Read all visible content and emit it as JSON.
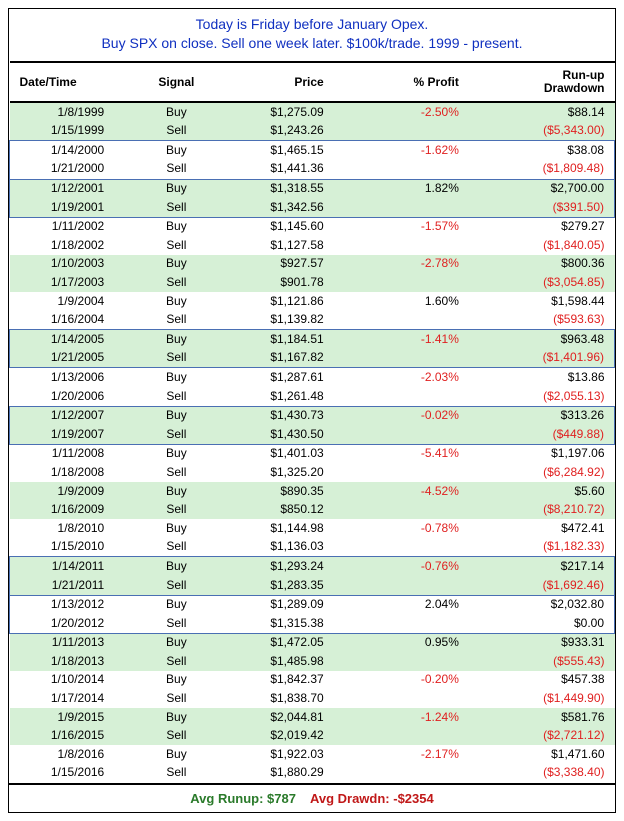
{
  "colors": {
    "title": "#1030c0",
    "row_shade": "#d6f0d6",
    "box_border": "#4a6fb3",
    "neg": "#e02020",
    "runup_label": "#2a7a2a",
    "drawdn_label": "#c01818"
  },
  "title": {
    "line1": "Today is Friday before January Opex.",
    "line2": "Buy SPX on close. Sell one week later. $100k/trade. 1999 - present."
  },
  "headers": {
    "date": "Date/Time",
    "signal": "Signal",
    "price": "Price",
    "profit": "% Profit",
    "run": "Run-up\nDrawdown"
  },
  "rows": [
    {
      "date": "1/8/1999",
      "signal": "Buy",
      "price": "$1,275.09",
      "profit": "-2.50%",
      "profit_neg": true,
      "run": "$88.14",
      "run_neg": false,
      "shade": true,
      "box": false
    },
    {
      "date": "1/15/1999",
      "signal": "Sell",
      "price": "$1,243.26",
      "profit": "",
      "profit_neg": false,
      "run": "($5,343.00)",
      "run_neg": true,
      "shade": true,
      "box": false
    },
    {
      "date": "1/14/2000",
      "signal": "Buy",
      "price": "$1,465.15",
      "profit": "-1.62%",
      "profit_neg": true,
      "run": "$38.08",
      "run_neg": false,
      "shade": false,
      "box": "top"
    },
    {
      "date": "1/21/2000",
      "signal": "Sell",
      "price": "$1,441.36",
      "profit": "",
      "profit_neg": false,
      "run": "($1,809.48)",
      "run_neg": true,
      "shade": false,
      "box": "bot"
    },
    {
      "date": "1/12/2001",
      "signal": "Buy",
      "price": "$1,318.55",
      "profit": "1.82%",
      "profit_neg": false,
      "run": "$2,700.00",
      "run_neg": false,
      "shade": true,
      "box": "top"
    },
    {
      "date": "1/19/2001",
      "signal": "Sell",
      "price": "$1,342.56",
      "profit": "",
      "profit_neg": false,
      "run": "($391.50)",
      "run_neg": true,
      "shade": true,
      "box": "bot"
    },
    {
      "date": "1/11/2002",
      "signal": "Buy",
      "price": "$1,145.60",
      "profit": "-1.57%",
      "profit_neg": true,
      "run": "$279.27",
      "run_neg": false,
      "shade": false,
      "box": false
    },
    {
      "date": "1/18/2002",
      "signal": "Sell",
      "price": "$1,127.58",
      "profit": "",
      "profit_neg": false,
      "run": "($1,840.05)",
      "run_neg": true,
      "shade": false,
      "box": false
    },
    {
      "date": "1/10/2003",
      "signal": "Buy",
      "price": "$927.57",
      "profit": "-2.78%",
      "profit_neg": true,
      "run": "$800.36",
      "run_neg": false,
      "shade": true,
      "box": false
    },
    {
      "date": "1/17/2003",
      "signal": "Sell",
      "price": "$901.78",
      "profit": "",
      "profit_neg": false,
      "run": "($3,054.85)",
      "run_neg": true,
      "shade": true,
      "box": false
    },
    {
      "date": "1/9/2004",
      "signal": "Buy",
      "price": "$1,121.86",
      "profit": "1.60%",
      "profit_neg": false,
      "run": "$1,598.44",
      "run_neg": false,
      "shade": false,
      "box": false
    },
    {
      "date": "1/16/2004",
      "signal": "Sell",
      "price": "$1,139.82",
      "profit": "",
      "profit_neg": false,
      "run": "($593.63)",
      "run_neg": true,
      "shade": false,
      "box": false
    },
    {
      "date": "1/14/2005",
      "signal": "Buy",
      "price": "$1,184.51",
      "profit": "-1.41%",
      "profit_neg": true,
      "run": "$963.48",
      "run_neg": false,
      "shade": true,
      "box": "top"
    },
    {
      "date": "1/21/2005",
      "signal": "Sell",
      "price": "$1,167.82",
      "profit": "",
      "profit_neg": false,
      "run": "($1,401.96)",
      "run_neg": true,
      "shade": true,
      "box": "bot"
    },
    {
      "date": "1/13/2006",
      "signal": "Buy",
      "price": "$1,287.61",
      "profit": "-2.03%",
      "profit_neg": true,
      "run": "$13.86",
      "run_neg": false,
      "shade": false,
      "box": false
    },
    {
      "date": "1/20/2006",
      "signal": "Sell",
      "price": "$1,261.48",
      "profit": "",
      "profit_neg": false,
      "run": "($2,055.13)",
      "run_neg": true,
      "shade": false,
      "box": false
    },
    {
      "date": "1/12/2007",
      "signal": "Buy",
      "price": "$1,430.73",
      "profit": "-0.02%",
      "profit_neg": true,
      "run": "$313.26",
      "run_neg": false,
      "shade": true,
      "box": "top"
    },
    {
      "date": "1/19/2007",
      "signal": "Sell",
      "price": "$1,430.50",
      "profit": "",
      "profit_neg": false,
      "run": "($449.88)",
      "run_neg": true,
      "shade": true,
      "box": "bot"
    },
    {
      "date": "1/11/2008",
      "signal": "Buy",
      "price": "$1,401.03",
      "profit": "-5.41%",
      "profit_neg": true,
      "run": "$1,197.06",
      "run_neg": false,
      "shade": false,
      "box": false
    },
    {
      "date": "1/18/2008",
      "signal": "Sell",
      "price": "$1,325.20",
      "profit": "",
      "profit_neg": false,
      "run": "($6,284.92)",
      "run_neg": true,
      "shade": false,
      "box": false
    },
    {
      "date": "1/9/2009",
      "signal": "Buy",
      "price": "$890.35",
      "profit": "-4.52%",
      "profit_neg": true,
      "run": "$5.60",
      "run_neg": false,
      "shade": true,
      "box": false
    },
    {
      "date": "1/16/2009",
      "signal": "Sell",
      "price": "$850.12",
      "profit": "",
      "profit_neg": false,
      "run": "($8,210.72)",
      "run_neg": true,
      "shade": true,
      "box": false
    },
    {
      "date": "1/8/2010",
      "signal": "Buy",
      "price": "$1,144.98",
      "profit": "-0.78%",
      "profit_neg": true,
      "run": "$472.41",
      "run_neg": false,
      "shade": false,
      "box": false
    },
    {
      "date": "1/15/2010",
      "signal": "Sell",
      "price": "$1,136.03",
      "profit": "",
      "profit_neg": false,
      "run": "($1,182.33)",
      "run_neg": true,
      "shade": false,
      "box": false
    },
    {
      "date": "1/14/2011",
      "signal": "Buy",
      "price": "$1,293.24",
      "profit": "-0.76%",
      "profit_neg": true,
      "run": "$217.14",
      "run_neg": false,
      "shade": true,
      "box": "top"
    },
    {
      "date": "1/21/2011",
      "signal": "Sell",
      "price": "$1,283.35",
      "profit": "",
      "profit_neg": false,
      "run": "($1,692.46)",
      "run_neg": true,
      "shade": true,
      "box": "bot"
    },
    {
      "date": "1/13/2012",
      "signal": "Buy",
      "price": "$1,289.09",
      "profit": "2.04%",
      "profit_neg": false,
      "run": "$2,032.80",
      "run_neg": false,
      "shade": false,
      "box": "top"
    },
    {
      "date": "1/20/2012",
      "signal": "Sell",
      "price": "$1,315.38",
      "profit": "",
      "profit_neg": false,
      "run": "$0.00",
      "run_neg": false,
      "shade": false,
      "box": "bot"
    },
    {
      "date": "1/11/2013",
      "signal": "Buy",
      "price": "$1,472.05",
      "profit": "0.95%",
      "profit_neg": false,
      "run": "$933.31",
      "run_neg": false,
      "shade": true,
      "box": false
    },
    {
      "date": "1/18/2013",
      "signal": "Sell",
      "price": "$1,485.98",
      "profit": "",
      "profit_neg": false,
      "run": "($555.43)",
      "run_neg": true,
      "shade": true,
      "box": false
    },
    {
      "date": "1/10/2014",
      "signal": "Buy",
      "price": "$1,842.37",
      "profit": "-0.20%",
      "profit_neg": true,
      "run": "$457.38",
      "run_neg": false,
      "shade": false,
      "box": false
    },
    {
      "date": "1/17/2014",
      "signal": "Sell",
      "price": "$1,838.70",
      "profit": "",
      "profit_neg": false,
      "run": "($1,449.90)",
      "run_neg": true,
      "shade": false,
      "box": false
    },
    {
      "date": "1/9/2015",
      "signal": "Buy",
      "price": "$2,044.81",
      "profit": "-1.24%",
      "profit_neg": true,
      "run": "$581.76",
      "run_neg": false,
      "shade": true,
      "box": false
    },
    {
      "date": "1/16/2015",
      "signal": "Sell",
      "price": "$2,019.42",
      "profit": "",
      "profit_neg": false,
      "run": "($2,721.12)",
      "run_neg": true,
      "shade": true,
      "box": false
    },
    {
      "date": "1/8/2016",
      "signal": "Buy",
      "price": "$1,922.03",
      "profit": "-2.17%",
      "profit_neg": true,
      "run": "$1,471.60",
      "run_neg": false,
      "shade": false,
      "box": false
    },
    {
      "date": "1/15/2016",
      "signal": "Sell",
      "price": "$1,880.29",
      "profit": "",
      "profit_neg": false,
      "run": "($3,338.40)",
      "run_neg": true,
      "shade": false,
      "box": false
    }
  ],
  "footer": {
    "runup_label": "Avg Runup: ",
    "runup_value": "$787",
    "drawdn_label": "Avg Drawdn: ",
    "drawdn_value": "-$2354"
  }
}
